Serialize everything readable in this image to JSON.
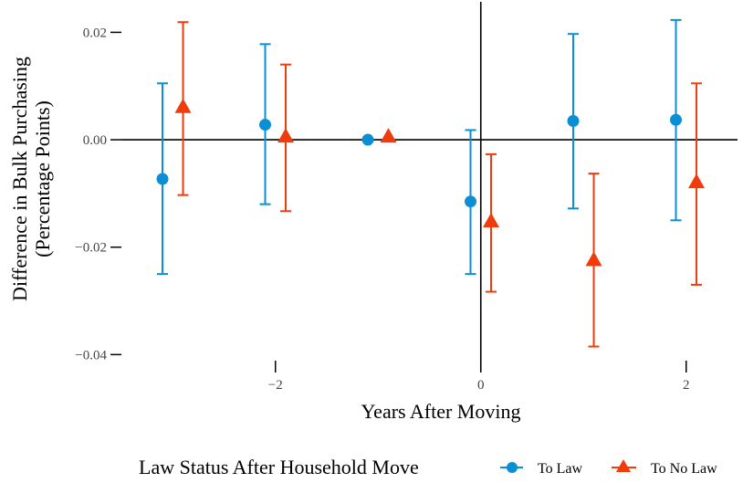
{
  "chart_data": {
    "type": "scatter",
    "xlabel": "Years After Moving",
    "ylabel_lines": [
      "Difference in Bulk Purchasing",
      "(Percentage Points)"
    ],
    "x_ticks": [
      {
        "value": -2,
        "label": "−2"
      },
      {
        "value": 0,
        "label": "0"
      },
      {
        "value": 2,
        "label": "2"
      }
    ],
    "y_ticks": [
      {
        "value": 0.02,
        "label": "0.02"
      },
      {
        "value": 0.0,
        "label": "0.00"
      },
      {
        "value": -0.02,
        "label": "−0.02"
      },
      {
        "value": -0.04,
        "label": "−0.04"
      }
    ],
    "xlim": [
      -3.5,
      2.5
    ],
    "ylim": [
      -0.043,
      0.025
    ],
    "reference_lines": {
      "x": 0,
      "y": 0
    },
    "grid": false,
    "legend": {
      "title": "Law Status After Household Move",
      "position": "bottom"
    },
    "series": [
      {
        "name": "To Law",
        "color": "#0a8fd4",
        "marker": "circle",
        "points": [
          {
            "x": -3.1,
            "y": -0.0073,
            "lo": -0.025,
            "hi": 0.0105
          },
          {
            "x": -2.1,
            "y": 0.0028,
            "lo": -0.012,
            "hi": 0.0178
          },
          {
            "x": -1.1,
            "y": 0.0,
            "lo": 0.0,
            "hi": 0.0
          },
          {
            "x": -0.1,
            "y": -0.0115,
            "lo": -0.025,
            "hi": 0.0018
          },
          {
            "x": 0.9,
            "y": 0.0035,
            "lo": -0.0128,
            "hi": 0.0197
          },
          {
            "x": 1.9,
            "y": 0.0037,
            "lo": -0.015,
            "hi": 0.0223
          }
        ]
      },
      {
        "name": "To No Law",
        "color": "#f03c0c",
        "marker": "triangle",
        "points": [
          {
            "x": -2.9,
            "y": 0.006,
            "lo": -0.0103,
            "hi": 0.0219
          },
          {
            "x": -1.9,
            "y": 0.0005,
            "lo": -0.0133,
            "hi": 0.014
          },
          {
            "x": -0.9,
            "y": 0.0005,
            "lo": 0.0005,
            "hi": 0.0005
          },
          {
            "x": 0.1,
            "y": -0.0153,
            "lo": -0.0283,
            "hi": -0.0027
          },
          {
            "x": 1.1,
            "y": -0.0225,
            "lo": -0.0385,
            "hi": -0.0063
          },
          {
            "x": 2.1,
            "y": -0.008,
            "lo": -0.027,
            "hi": 0.0105
          }
        ]
      }
    ]
  }
}
